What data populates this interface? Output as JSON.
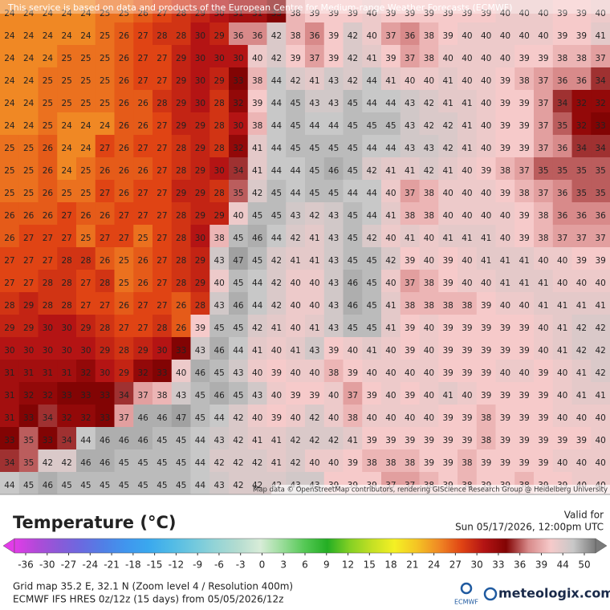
{
  "header": {
    "disclaimer": "This service is based on data and products of the European Centre for Medium-range Weather Forecasts (ECMWF)",
    "attribution": "Map data © OpenStreetMap contributors, rendering GIScience Research Group @ Heidelberg University"
  },
  "grid": {
    "rows": [
      [
        24,
        24,
        24,
        24,
        24,
        25,
        25,
        26,
        27,
        28,
        29,
        30,
        31,
        31,
        33,
        38,
        39,
        39,
        39,
        40,
        39,
        39,
        39,
        39,
        39,
        39,
        40,
        40,
        40,
        39,
        39,
        40
      ],
      [
        24,
        24,
        24,
        24,
        24,
        25,
        26,
        27,
        28,
        28,
        30,
        29,
        36,
        36,
        42,
        38,
        36,
        39,
        42,
        40,
        37,
        36,
        38,
        39,
        40,
        40,
        40,
        40,
        40,
        39,
        39,
        41
      ],
      [
        24,
        24,
        24,
        25,
        25,
        25,
        26,
        27,
        27,
        29,
        30,
        30,
        30,
        40,
        42,
        39,
        37,
        39,
        42,
        41,
        39,
        37,
        38,
        40,
        40,
        40,
        40,
        39,
        39,
        38,
        38,
        37
      ],
      [
        24,
        24,
        25,
        25,
        25,
        25,
        26,
        27,
        27,
        29,
        30,
        29,
        33,
        38,
        44,
        42,
        41,
        43,
        42,
        44,
        41,
        40,
        40,
        41,
        40,
        40,
        39,
        38,
        37,
        36,
        36,
        34
      ],
      [
        24,
        24,
        25,
        25,
        25,
        25,
        26,
        26,
        28,
        29,
        30,
        28,
        32,
        39,
        44,
        45,
        43,
        43,
        45,
        44,
        44,
        43,
        42,
        41,
        41,
        40,
        39,
        39,
        37,
        34,
        32,
        32
      ],
      [
        24,
        24,
        25,
        24,
        24,
        24,
        26,
        26,
        27,
        29,
        29,
        28,
        30,
        38,
        44,
        45,
        44,
        44,
        45,
        45,
        45,
        43,
        42,
        42,
        41,
        40,
        39,
        39,
        37,
        35,
        32,
        33
      ],
      [
        25,
        25,
        26,
        24,
        24,
        27,
        26,
        27,
        27,
        28,
        29,
        28,
        32,
        41,
        44,
        45,
        45,
        45,
        45,
        44,
        44,
        43,
        43,
        42,
        41,
        40,
        39,
        39,
        37,
        36,
        34,
        34
      ],
      [
        25,
        25,
        26,
        24,
        25,
        26,
        26,
        26,
        27,
        28,
        29,
        30,
        34,
        41,
        44,
        44,
        45,
        46,
        45,
        42,
        41,
        41,
        42,
        41,
        40,
        39,
        38,
        37,
        35,
        35,
        35,
        35
      ],
      [
        25,
        25,
        26,
        25,
        25,
        27,
        26,
        27,
        27,
        29,
        29,
        28,
        35,
        42,
        45,
        44,
        45,
        45,
        44,
        44,
        40,
        37,
        38,
        40,
        40,
        40,
        39,
        38,
        37,
        36,
        35,
        35
      ],
      [
        26,
        26,
        26,
        27,
        26,
        26,
        27,
        27,
        27,
        28,
        29,
        29,
        40,
        45,
        45,
        43,
        42,
        43,
        45,
        44,
        41,
        38,
        38,
        40,
        40,
        40,
        40,
        39,
        38,
        36,
        36,
        36
      ],
      [
        26,
        27,
        27,
        27,
        25,
        27,
        27,
        25,
        27,
        28,
        30,
        38,
        45,
        46,
        44,
        42,
        41,
        43,
        45,
        42,
        40,
        41,
        40,
        41,
        41,
        41,
        40,
        39,
        38,
        37,
        37,
        37
      ],
      [
        27,
        27,
        27,
        28,
        28,
        26,
        25,
        26,
        27,
        28,
        29,
        43,
        47,
        45,
        42,
        41,
        41,
        43,
        45,
        45,
        42,
        39,
        40,
        39,
        40,
        41,
        41,
        41,
        40,
        40,
        39,
        39
      ],
      [
        27,
        27,
        28,
        28,
        27,
        28,
        25,
        26,
        27,
        28,
        29,
        40,
        45,
        44,
        42,
        40,
        40,
        43,
        46,
        45,
        40,
        37,
        38,
        39,
        40,
        40,
        41,
        41,
        41,
        40,
        40,
        40
      ],
      [
        28,
        29,
        28,
        28,
        27,
        27,
        26,
        27,
        27,
        26,
        28,
        43,
        46,
        44,
        42,
        40,
        40,
        43,
        46,
        45,
        41,
        38,
        38,
        38,
        38,
        39,
        40,
        40,
        41,
        41,
        41,
        41
      ],
      [
        29,
        29,
        30,
        30,
        29,
        28,
        27,
        27,
        28,
        26,
        39,
        45,
        45,
        42,
        41,
        40,
        41,
        43,
        45,
        45,
        41,
        39,
        40,
        39,
        39,
        39,
        39,
        39,
        40,
        41,
        42,
        42
      ],
      [
        30,
        30,
        30,
        30,
        30,
        29,
        28,
        29,
        30,
        33,
        43,
        46,
        44,
        41,
        40,
        41,
        43,
        39,
        40,
        41,
        40,
        39,
        40,
        39,
        39,
        39,
        39,
        39,
        40,
        41,
        42,
        42
      ],
      [
        31,
        31,
        31,
        31,
        32,
        30,
        29,
        32,
        33,
        40,
        46,
        45,
        43,
        40,
        39,
        40,
        40,
        38,
        39,
        40,
        40,
        40,
        40,
        39,
        39,
        39,
        40,
        40,
        39,
        40,
        41,
        42
      ],
      [
        31,
        32,
        32,
        33,
        33,
        33,
        34,
        37,
        38,
        43,
        45,
        46,
        45,
        43,
        40,
        39,
        39,
        40,
        37,
        39,
        40,
        39,
        40,
        41,
        40,
        39,
        39,
        39,
        39,
        40,
        41,
        41
      ],
      [
        31,
        33,
        34,
        32,
        32,
        33,
        37,
        46,
        46,
        47,
        45,
        44,
        42,
        40,
        39,
        40,
        42,
        40,
        38,
        40,
        40,
        40,
        40,
        39,
        39,
        38,
        39,
        39,
        39,
        40,
        40,
        40
      ],
      [
        33,
        35,
        33,
        34,
        44,
        46,
        46,
        46,
        45,
        45,
        44,
        43,
        42,
        41,
        41,
        42,
        42,
        42,
        41,
        39,
        39,
        39,
        39,
        39,
        39,
        38,
        39,
        39,
        39,
        39,
        39,
        40
      ],
      [
        34,
        35,
        42,
        42,
        46,
        46,
        45,
        45,
        45,
        45,
        44,
        42,
        42,
        42,
        41,
        42,
        40,
        40,
        39,
        38,
        38,
        38,
        39,
        39,
        38,
        39,
        39,
        39,
        39,
        40,
        40,
        40
      ],
      [
        44,
        45,
        46,
        45,
        45,
        45,
        45,
        45,
        45,
        45,
        44,
        43,
        42,
        42,
        42,
        43,
        43,
        39,
        39,
        39,
        37,
        37,
        38,
        39,
        38,
        39,
        39,
        38,
        39,
        39,
        40,
        40
      ]
    ]
  },
  "legend": {
    "title": "Temperature (°C)",
    "valid_label": "Valid for",
    "valid_time": "Sun 05/17/2026, 12:00pm UTC",
    "ticks": [
      -36,
      -30,
      -27,
      -24,
      -21,
      -18,
      -15,
      -12,
      -9,
      -6,
      -3,
      0,
      3,
      6,
      9,
      12,
      15,
      18,
      21,
      24,
      27,
      30,
      33,
      36,
      39,
      44,
      50
    ],
    "colors": [
      "#e23ce8",
      "#b04ad8",
      "#8a5ad8",
      "#6a6ae0",
      "#5080e6",
      "#4096ee",
      "#3aa8ee",
      "#50bae6",
      "#70c8de",
      "#94d4d6",
      "#b4dcd0",
      "#d8ecd8",
      "#98dc98",
      "#54c854",
      "#24ae24",
      "#84d024",
      "#c4e024",
      "#f4f024",
      "#f4c424",
      "#f08824",
      "#e04414",
      "#b41414",
      "#820404",
      "#d88a8a",
      "#f6caca",
      "#c8c8c8",
      "#7a7a7a"
    ]
  },
  "footer": {
    "grid_info": "Grid map 35.2 E, 32.1 N (Zoom level 4 / Resolution 400m)",
    "model_info": "ECMWF IFS HRES 0z/12z (15 days) from 05/05/2026/12z",
    "ecmwf_logo": "ECMWF",
    "brand": "meteologix.com"
  }
}
